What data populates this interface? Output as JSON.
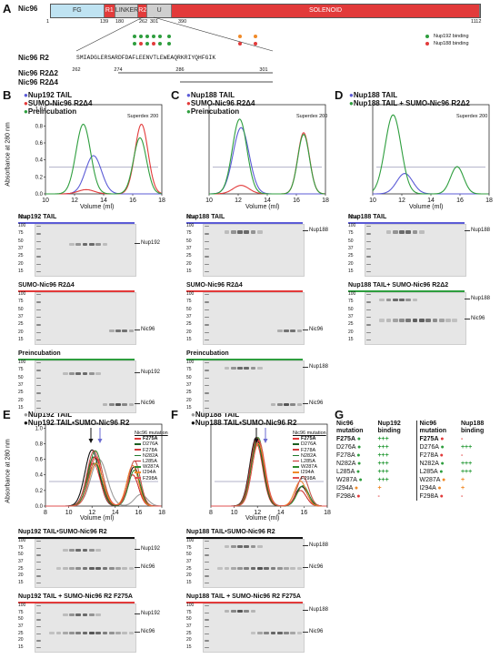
{
  "panel_a": {
    "label": "A",
    "protein": "Nic96",
    "domains": [
      {
        "name": "FG",
        "color": "#bfe3f2"
      },
      {
        "name": "R1",
        "color": "#e23a3a"
      },
      {
        "name": "LINKER",
        "color": "#cfcfcf"
      },
      {
        "name": "R2",
        "color": "#e23a3a"
      },
      {
        "name": "U",
        "color": "#cfcfcf"
      },
      {
        "name": "SOLENOID",
        "color": "#e23a3a"
      }
    ],
    "residue_ticks": [
      "1",
      "139",
      "180",
      "262",
      "301",
      "390",
      "1112"
    ],
    "legend": {
      "nup192": "Nup192 binding",
      "nup188": "Nup188 binding"
    },
    "r2_label": "Nic96 R2",
    "r2_sequence": "SMIADGLERSARDFDAFLEENVTLEWEAQRKRIYQHFGIK",
    "seq_ticks": [
      "262",
      "274",
      "286",
      "301"
    ],
    "constructs": [
      "Nic96 R2Δ2",
      "Nic96 R2Δ4"
    ]
  },
  "panel_b": {
    "label": "B",
    "legend": [
      "Nup192 TAIL",
      "SUMO-Nic96 R2Δ4",
      "Preincubation"
    ],
    "column": "Superdex 200",
    "gels": [
      {
        "title": "Nup192 TAIL",
        "band_label": "Nup192"
      },
      {
        "title": "SUMO-Nic96 R2Δ4",
        "band_label": "Nic96"
      },
      {
        "title": "Preincubation",
        "band_label_1": "Nup192",
        "band_label_2": "Nic96"
      }
    ]
  },
  "panel_c": {
    "label": "C",
    "legend": [
      "Nup188 TAIL",
      "SUMO-Nic96 R2Δ4",
      "Preincubation"
    ],
    "column": "Superdex 200",
    "gels": [
      {
        "title": "Nup188 TAIL",
        "band_label": "Nup188"
      },
      {
        "title": "SUMO-Nic96 R2Δ4",
        "band_label": "Nic96"
      },
      {
        "title": "Preincubation",
        "band_label_1": "Nup188",
        "band_label_2": "Nic96"
      }
    ]
  },
  "panel_d": {
    "label": "D",
    "legend": [
      "Nup188 TAIL",
      "Nup188 TAIL + SUMO-Nic96 R2Δ2"
    ],
    "column": "Superdex 200",
    "gels": [
      {
        "title": "Nup188 TAIL",
        "band_label": "Nup188"
      },
      {
        "title": "Nup188 TAIL+ SUMO-Nic96 R2Δ2",
        "band_label_1": "Nup188",
        "band_label_2": "Nic96"
      }
    ]
  },
  "panel_e": {
    "label": "E",
    "legend": [
      "Nup192 TAIL",
      "Nup192 TAIL•SUMO-Nic96 R2"
    ],
    "mut_title": "Nic96 mutation",
    "mutations": [
      "F275A",
      "D276A",
      "F278A",
      "N282A",
      "L285A",
      "W287A",
      "I294A",
      "F298A"
    ],
    "gels": [
      {
        "title": "Nup192 TAIL•SUMO-Nic96 R2",
        "band_label_1": "Nup192",
        "band_label_2": "Nic96"
      },
      {
        "title": "Nup192 TAIL + SUMO-Nic96 R2 F275A",
        "band_label_1": "Nup192",
        "band_label_2": "Nic96"
      }
    ]
  },
  "panel_f": {
    "label": "F",
    "legend": [
      "Nup188 TAIL",
      "Nup188 TAIL•SUMO-Nic96 R2"
    ],
    "mut_title": "Nic96 mutation",
    "mutations": [
      "F275A",
      "D276A",
      "F278A",
      "N282A",
      "L285A",
      "W287A",
      "I294A",
      "F298A"
    ],
    "gels": [
      {
        "title": "Nup188 TAIL•SUMO-Nic96 R2",
        "band_label_1": "Nup188",
        "band_label_2": "Nic96"
      },
      {
        "title": "Nup188 TAIL + SUMO-Nic96 R2 F275A",
        "band_label_1": "Nup188",
        "band_label_2": "Nic96"
      }
    ]
  },
  "panel_g": {
    "label": "G",
    "headers": [
      "Nic96 mutation",
      "Nup192 binding",
      "Nic96 mutation",
      "Nup188 binding"
    ],
    "rows": [
      {
        "mut": "F275A",
        "b192": "+++",
        "b188": "-"
      },
      {
        "mut": "D276A",
        "b192": "+++",
        "b188": "+++"
      },
      {
        "mut": "F278A",
        "b192": "+++",
        "b188": "-"
      },
      {
        "mut": "N282A",
        "b192": "+++",
        "b188": "+++"
      },
      {
        "mut": "L285A",
        "b192": "+++",
        "b188": "+++"
      },
      {
        "mut": "W287A",
        "b192": "+++",
        "b188": "+"
      },
      {
        "mut": "I294A",
        "b192": "+",
        "b188": "+"
      },
      {
        "mut": "F298A",
        "b192": "-",
        "b188": "-"
      }
    ]
  },
  "axes": {
    "ylabel": "Absorbance at 280 nm",
    "xlabel": "Volume (ml)",
    "x_ticks_bcd": [
      "10",
      "12",
      "14",
      "16",
      "18"
    ],
    "x_ticks_ef": [
      "8",
      "10",
      "12",
      "14",
      "16",
      "18"
    ],
    "kda": "kDa",
    "mw_ladder": [
      "100",
      "75",
      "50",
      "37",
      "25",
      "20",
      "15"
    ]
  },
  "colors": {
    "blue": "#5b5bd6",
    "red": "#e23a3a",
    "green": "#2e9e3e",
    "gray": "#9a9a9a",
    "black": "#111111",
    "orange": "#f08a28",
    "dark_green": "#1b5e20"
  },
  "chart_data": [
    {
      "type": "line",
      "panel": "B",
      "x_range": [
        10,
        18
      ],
      "series": [
        {
          "name": "Nup192 TAIL",
          "peaks": [
            [
              13.3,
              0.55
            ]
          ]
        },
        {
          "name": "SUMO-Nic96 R2Δ4",
          "peaks": [
            [
              16.6,
              0.95
            ]
          ]
        },
        {
          "name": "Preincubation",
          "peaks": [
            [
              12.6,
              0.95
            ],
            [
              16.5,
              0.8
            ]
          ]
        }
      ]
    },
    {
      "type": "line",
      "panel": "C",
      "x_range": [
        10,
        18
      ],
      "series": [
        {
          "name": "Nup188 TAIL",
          "peaks": [
            [
              12.2,
              0.9
            ]
          ]
        },
        {
          "name": "SUMO-Nic96 R2Δ4",
          "peaks": [
            [
              16.5,
              0.85
            ]
          ]
        },
        {
          "name": "Preincubation",
          "peaks": [
            [
              12.1,
              1.0
            ],
            [
              16.5,
              0.82
            ]
          ]
        }
      ]
    },
    {
      "type": "line",
      "panel": "D",
      "x_range": [
        10,
        18
      ],
      "series": [
        {
          "name": "Nup188 TAIL",
          "peaks": [
            [
              12.2,
              0.25
            ]
          ]
        },
        {
          "name": "Nup188 TAIL + SUMO-Nic96 R2Δ2",
          "peaks": [
            [
              11.4,
              0.95
            ],
            [
              15.8,
              0.35
            ]
          ]
        }
      ]
    }
  ]
}
